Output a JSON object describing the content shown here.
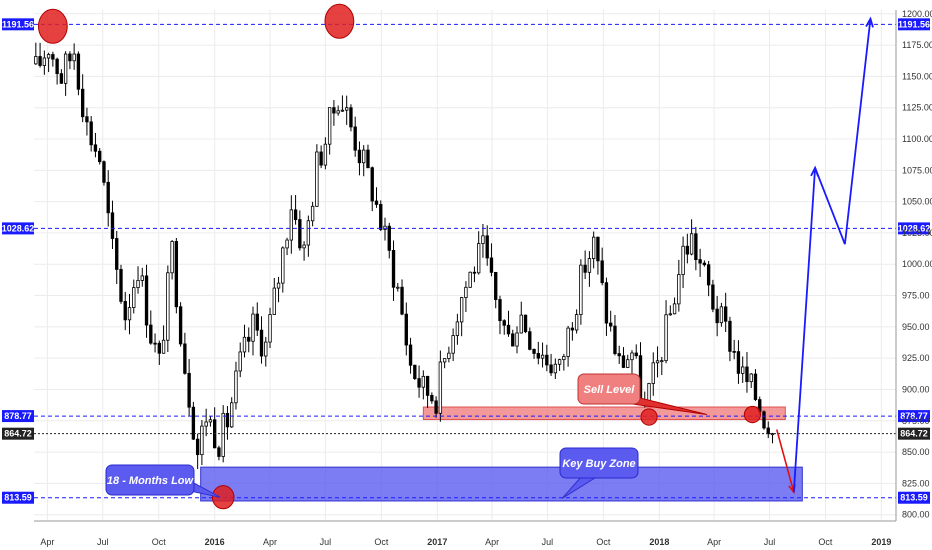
{
  "chart_data": {
    "type": "candlestick",
    "title": "",
    "xlabel": "",
    "ylabel": "",
    "ylim": [
      795,
      1203
    ],
    "xlim": [
      "2015-03-10",
      "2019-01-25"
    ],
    "y_ticks": [
      "800.00",
      "825.00",
      "850.00",
      "875.00",
      "900.00",
      "925.00",
      "950.00",
      "975.00",
      "1000.00",
      "1025.00",
      "1050.00",
      "1075.00",
      "1100.00",
      "1125.00",
      "1150.00",
      "1175.00",
      "1200.00"
    ],
    "x_ticks": [
      {
        "label": "Apr",
        "date": "2015-04-01",
        "major": false
      },
      {
        "label": "Jul",
        "date": "2015-07-01",
        "major": false
      },
      {
        "label": "Oct",
        "date": "2015-10-01",
        "major": false
      },
      {
        "label": "2016",
        "date": "2016-01-01",
        "major": true
      },
      {
        "label": "Apr",
        "date": "2016-04-01",
        "major": false
      },
      {
        "label": "Jul",
        "date": "2016-07-01",
        "major": false
      },
      {
        "label": "Oct",
        "date": "2016-10-01",
        "major": false
      },
      {
        "label": "2017",
        "date": "2017-01-01",
        "major": true
      },
      {
        "label": "Apr",
        "date": "2017-04-01",
        "major": false
      },
      {
        "label": "Jul",
        "date": "2017-07-01",
        "major": false
      },
      {
        "label": "Oct",
        "date": "2017-10-01",
        "major": false
      },
      {
        "label": "2018",
        "date": "2018-01-01",
        "major": true
      },
      {
        "label": "Apr",
        "date": "2018-04-01",
        "major": false
      },
      {
        "label": "Jul",
        "date": "2018-07-01",
        "major": false
      },
      {
        "label": "Oct",
        "date": "2018-10-01",
        "major": false
      },
      {
        "label": "2019",
        "date": "2019-01-01",
        "major": true
      }
    ],
    "price_levels": [
      {
        "value": 1191.56,
        "label": "1191.56",
        "color": "#1a1aff"
      },
      {
        "value": 1028.62,
        "label": "1028.62",
        "color": "#1a1aff"
      },
      {
        "value": 878.77,
        "label": "878.77",
        "color": "#1a1aff"
      },
      {
        "value": 864.72,
        "label": "864.72",
        "color": "#222222"
      },
      {
        "value": 813.59,
        "label": "813.59",
        "color": "#1a1aff"
      }
    ],
    "close_series": [
      {
        "date": "2015-03-13",
        "close": 1155
      },
      {
        "date": "2015-04-03",
        "close": 1175
      },
      {
        "date": "2015-04-24",
        "close": 1150
      },
      {
        "date": "2015-05-15",
        "close": 1172
      },
      {
        "date": "2015-06-05",
        "close": 1110
      },
      {
        "date": "2015-06-26",
        "close": 1085
      },
      {
        "date": "2015-07-17",
        "close": 1010
      },
      {
        "date": "2015-08-07",
        "close": 960
      },
      {
        "date": "2015-08-28",
        "close": 1000
      },
      {
        "date": "2015-09-18",
        "close": 945
      },
      {
        "date": "2015-10-02",
        "close": 920
      },
      {
        "date": "2015-10-23",
        "close": 1010
      },
      {
        "date": "2015-11-13",
        "close": 920
      },
      {
        "date": "2015-12-04",
        "close": 850
      },
      {
        "date": "2015-12-18",
        "close": 880
      },
      {
        "date": "2016-01-08",
        "close": 860
      },
      {
        "date": "2016-01-22",
        "close": 875
      },
      {
        "date": "2016-02-12",
        "close": 920
      },
      {
        "date": "2016-03-04",
        "close": 950
      },
      {
        "date": "2016-03-25",
        "close": 935
      },
      {
        "date": "2016-04-15",
        "close": 990
      },
      {
        "date": "2016-05-06",
        "close": 1050
      },
      {
        "date": "2016-05-27",
        "close": 1010
      },
      {
        "date": "2016-06-17",
        "close": 1080
      },
      {
        "date": "2016-07-01",
        "close": 1100
      },
      {
        "date": "2016-07-22",
        "close": 1135
      },
      {
        "date": "2016-08-05",
        "close": 1120
      },
      {
        "date": "2016-08-26",
        "close": 1090
      },
      {
        "date": "2016-09-16",
        "close": 1060
      },
      {
        "date": "2016-10-07",
        "close": 1020
      },
      {
        "date": "2016-10-28",
        "close": 980
      },
      {
        "date": "2016-11-18",
        "close": 920
      },
      {
        "date": "2016-12-09",
        "close": 900
      },
      {
        "date": "2016-12-30",
        "close": 895
      },
      {
        "date": "2017-01-20",
        "close": 940
      },
      {
        "date": "2017-02-10",
        "close": 975
      },
      {
        "date": "2017-03-03",
        "close": 1000
      },
      {
        "date": "2017-03-17",
        "close": 1010
      },
      {
        "date": "2017-04-07",
        "close": 970
      },
      {
        "date": "2017-04-28",
        "close": 940
      },
      {
        "date": "2017-05-19",
        "close": 960
      },
      {
        "date": "2017-06-09",
        "close": 935
      },
      {
        "date": "2017-06-30",
        "close": 925
      },
      {
        "date": "2017-07-21",
        "close": 915
      },
      {
        "date": "2017-08-11",
        "close": 960
      },
      {
        "date": "2017-09-01",
        "close": 1000
      },
      {
        "date": "2017-09-15",
        "close": 1015
      },
      {
        "date": "2017-10-06",
        "close": 960
      },
      {
        "date": "2017-10-27",
        "close": 920
      },
      {
        "date": "2017-11-17",
        "close": 930
      },
      {
        "date": "2017-12-08",
        "close": 885
      },
      {
        "date": "2017-12-29",
        "close": 920
      },
      {
        "date": "2018-01-19",
        "close": 960
      },
      {
        "date": "2018-02-09",
        "close": 1010
      },
      {
        "date": "2018-02-23",
        "close": 1020
      },
      {
        "date": "2018-03-16",
        "close": 990
      },
      {
        "date": "2018-04-06",
        "close": 960
      },
      {
        "date": "2018-04-27",
        "close": 940
      },
      {
        "date": "2018-05-18",
        "close": 910
      },
      {
        "date": "2018-06-08",
        "close": 895
      },
      {
        "date": "2018-06-22",
        "close": 880
      },
      {
        "date": "2018-07-06",
        "close": 864.72
      }
    ],
    "projection_red": [
      {
        "date": "2018-07-13",
        "value": 868
      },
      {
        "date": "2018-08-10",
        "value": 818
      }
    ],
    "projection_blue": [
      {
        "date": "2018-08-10",
        "value": 818
      },
      {
        "date": "2018-09-14",
        "value": 1077
      },
      {
        "date": "2018-11-02",
        "value": 1016
      },
      {
        "date": "2018-12-14",
        "value": 1196
      }
    ],
    "zones": [
      {
        "name": "sell-level-zone",
        "from": "2016-12-09",
        "to": "2018-07-27",
        "low": 876,
        "high": 886,
        "fill": "#f08080",
        "stroke": "#e05050"
      },
      {
        "name": "key-buy-zone",
        "from": "2015-12-09",
        "to": "2018-08-24",
        "low": 811,
        "high": 838,
        "fill": "#5b5bf0",
        "stroke": "#3030d0"
      }
    ],
    "markers": [
      {
        "date": "2015-04-10",
        "value": 1190,
        "w": 1.6,
        "h": 5
      },
      {
        "date": "2016-07-24",
        "value": 1194,
        "w": 1.6,
        "h": 5
      },
      {
        "date": "2016-01-15",
        "value": 814,
        "w": 1.2,
        "h": 3.4
      },
      {
        "date": "2017-12-15",
        "value": 878,
        "w": 0.9,
        "h": 2.4
      },
      {
        "date": "2018-06-03",
        "value": 880,
        "w": 0.9,
        "h": 2.4
      }
    ],
    "annotations": [
      {
        "name": "sell-level-callout",
        "text": "Sell Level"
      },
      {
        "name": "months-low-callout",
        "text": "18 - Months Low"
      },
      {
        "name": "key-buy-zone-callout",
        "text": "Key Buy Zone"
      }
    ],
    "colors": {
      "candle_up": "#ffffff",
      "candle_down": "#000000",
      "level_line": "#1a1aff",
      "last_price_line": "#222222",
      "projection_blue": "#1a1aff",
      "projection_red": "#e01010",
      "marker": "#e02020",
      "grid": "#ececec"
    },
    "grid": true,
    "legend": "none"
  }
}
